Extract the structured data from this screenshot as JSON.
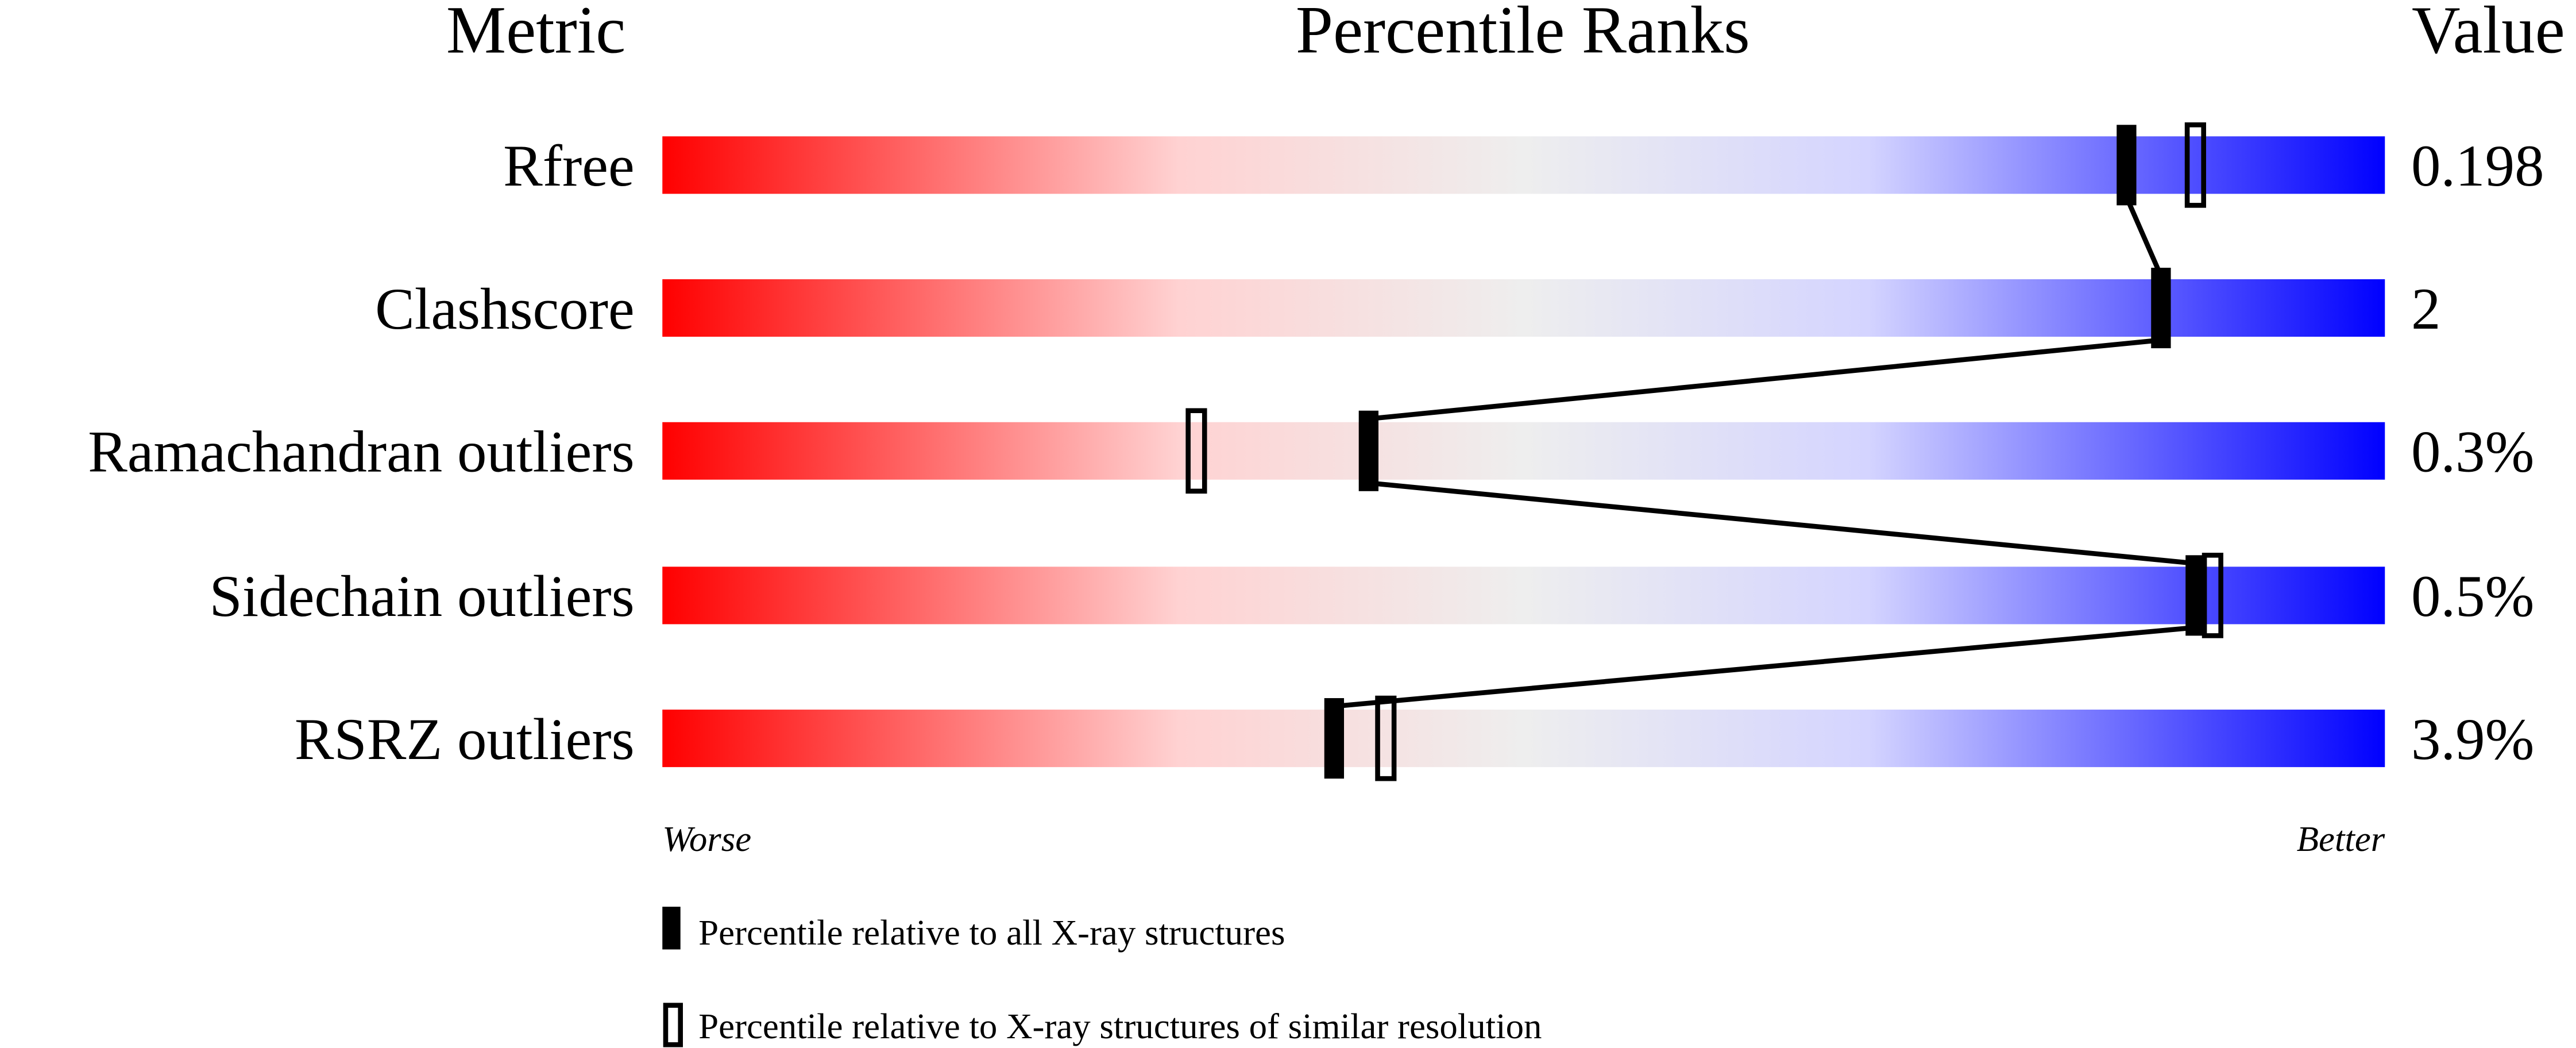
{
  "chart_data": {
    "type": "percentile-ranks",
    "headers": {
      "metric": "Metric",
      "percentile": "Percentile Ranks",
      "value": "Value"
    },
    "xlim": [
      0,
      100
    ],
    "axis_ends": {
      "left": "Worse",
      "right": "Better"
    },
    "gradient_colors": [
      "#ff0000",
      "#eeeeee",
      "#0000ff"
    ],
    "metrics": [
      {
        "name": "Rfree",
        "value": "0.198",
        "percentile_all": 85,
        "percentile_similar": 89
      },
      {
        "name": "Clashscore",
        "value": "2",
        "percentile_all": 87,
        "percentile_similar": null
      },
      {
        "name": "Ramachandran outliers",
        "value": "0.3%",
        "percentile_all": 41,
        "percentile_similar": 31
      },
      {
        "name": "Sidechain outliers",
        "value": "0.5%",
        "percentile_all": 89,
        "percentile_similar": 90
      },
      {
        "name": "RSRZ outliers",
        "value": "3.9%",
        "percentile_all": 39,
        "percentile_similar": 42
      }
    ],
    "legend": [
      {
        "marker": "filled",
        "label": "Percentile relative to all X-ray structures"
      },
      {
        "marker": "hollow",
        "label": "Percentile relative to X-ray structures of similar resolution"
      }
    ]
  }
}
